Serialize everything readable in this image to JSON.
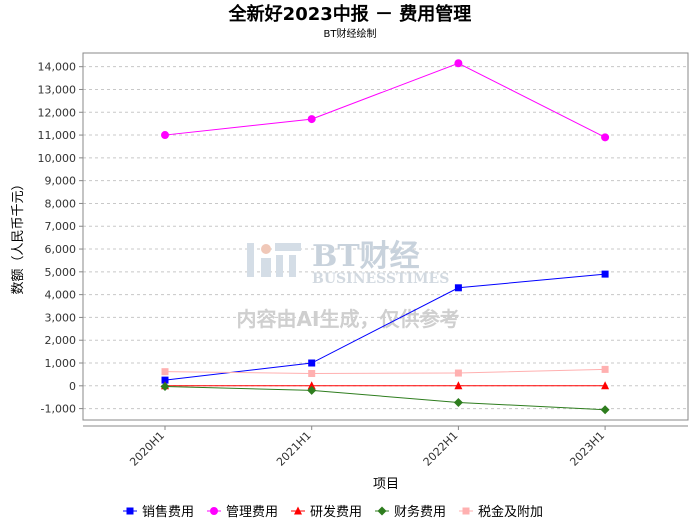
{
  "chart_data": {
    "type": "line",
    "title": "全新好2023中报 － 费用管理",
    "subtitle": "BT财经绘制",
    "xlabel": "项目",
    "ylabel": "数额（人民币千元）",
    "categories": [
      "2020H1",
      "2021H1",
      "2022H1",
      "2023H1"
    ],
    "ylim": [
      -1500,
      14600
    ],
    "yticks": [
      -1000,
      0,
      1000,
      2000,
      3000,
      4000,
      5000,
      6000,
      7000,
      8000,
      9000,
      10000,
      11000,
      12000,
      13000,
      14000
    ],
    "ytick_labels": [
      "-1,000",
      "0",
      "1,000",
      "2,000",
      "3,000",
      "4,000",
      "5,000",
      "6,000",
      "7,000",
      "8,000",
      "9,000",
      "10,000",
      "11,000",
      "12,000",
      "13,000",
      "14,000"
    ],
    "grid": true,
    "legend_position": "bottom",
    "series": [
      {
        "name": "销售费用",
        "color": "#0000ff",
        "marker": "square",
        "values": [
          250,
          1000,
          4300,
          4900
        ]
      },
      {
        "name": "管理费用",
        "color": "#ff00ff",
        "marker": "circle",
        "values": [
          11000,
          11700,
          14150,
          10900
        ]
      },
      {
        "name": "研发费用",
        "color": "#ff0000",
        "marker": "triangle",
        "values": [
          0,
          0,
          0,
          0
        ]
      },
      {
        "name": "财务费用",
        "color": "#2e7d1e",
        "marker": "diamond",
        "values": [
          -30,
          -200,
          -730,
          -1050
        ]
      },
      {
        "name": "税金及附加",
        "color": "#ffb0b0",
        "marker": "square",
        "values": [
          620,
          540,
          560,
          720
        ]
      }
    ]
  },
  "watermark": {
    "brand": "BT财经",
    "brand_en": "BUSINESSTIMES",
    "note": "内容由AI生成，仅供参考"
  }
}
